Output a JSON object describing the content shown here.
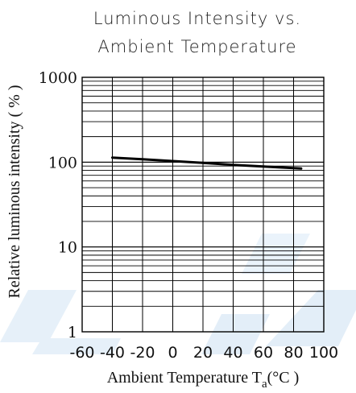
{
  "chart_data": {
    "type": "line",
    "title_lines": [
      "Luminous Intensity vs.",
      "Ambient Temperature"
    ],
    "xlabel_main": "Ambient Temperature T",
    "xlabel_sub": "a",
    "xlabel_unit": "(°C )",
    "ylabel": "Relative luminous intensity ( % )",
    "xlim": [
      -60,
      100
    ],
    "ylim": [
      1,
      1000
    ],
    "yscale": "log",
    "grid": true,
    "x_ticks": [
      "-60",
      "-40",
      "-20",
      "0",
      "20",
      "40",
      "60",
      "80",
      "100"
    ],
    "y_ticks": [
      "1",
      "10",
      "100",
      "1000"
    ],
    "series": [
      {
        "x": [
          -40,
          -20,
          0,
          20,
          40,
          60,
          80,
          85
        ],
        "y": [
          113,
          108,
          103,
          98,
          93,
          89,
          85,
          84
        ]
      }
    ],
    "colors": {
      "line": "#000000",
      "grid": "#000000",
      "watermark": "#e3eef8"
    }
  }
}
